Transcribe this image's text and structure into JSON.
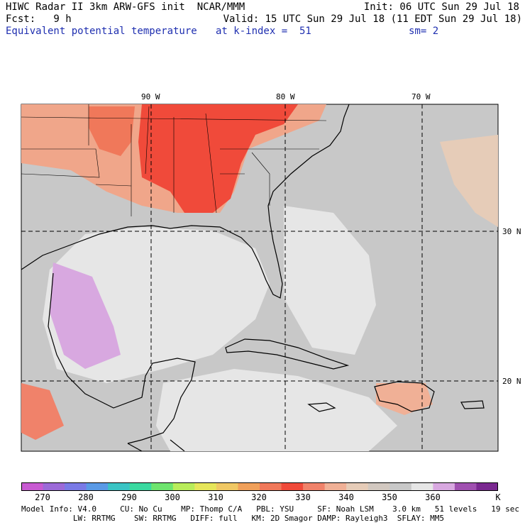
{
  "header": {
    "line1_left": "HIWC Radar II 3km ARW-GFS init  NCAR/MMM",
    "line1_right": "Init: 06 UTC Sun 29 Jul 18",
    "line2_left": "Fcst:   9 h",
    "line2_right": "Valid: 15 UTC Sun 29 Jul 18 (11 EDT Sun 29 Jul 18)",
    "line3_left": "Equivalent potential temperature",
    "line3_mid": "at k-index =  51",
    "line3_right": "sm= 2"
  },
  "map": {
    "lon_labels": [
      "90 W",
      "80 W",
      "70 W"
    ],
    "lat_labels": [
      "30 N",
      "20 N"
    ]
  },
  "colorbar": {
    "labels": [
      "270",
      "280",
      "290",
      "300",
      "310",
      "320",
      "330",
      "340",
      "350",
      "360",
      "K"
    ],
    "colors": [
      "#c85ad2",
      "#9c6ad8",
      "#7a7ae6",
      "#5a9ae6",
      "#3ac4c4",
      "#3ad9a0",
      "#6ee46e",
      "#b8ec5a",
      "#e6e65a",
      "#f0c864",
      "#f0a05a",
      "#f0785a",
      "#f04a3a",
      "#f0826a",
      "#f0b096",
      "#e6ccb8",
      "#d2c8c0",
      "#c8c8c8",
      "#e6e6e6",
      "#d8a8e0",
      "#a050b0",
      "#7a2890"
    ]
  },
  "footer": {
    "line1": "Model Info: V4.0     CU: No Cu    MP: Thomp C/A   PBL: YSU     SF: Noah LSM    3.0 km   51 levels   19 sec",
    "line2": "           LW: RRTMG    SW: RRTMG   DIFF: full   KM: 2D Smagor DAMP: Rayleigh3  SFLAY: MM5"
  }
}
